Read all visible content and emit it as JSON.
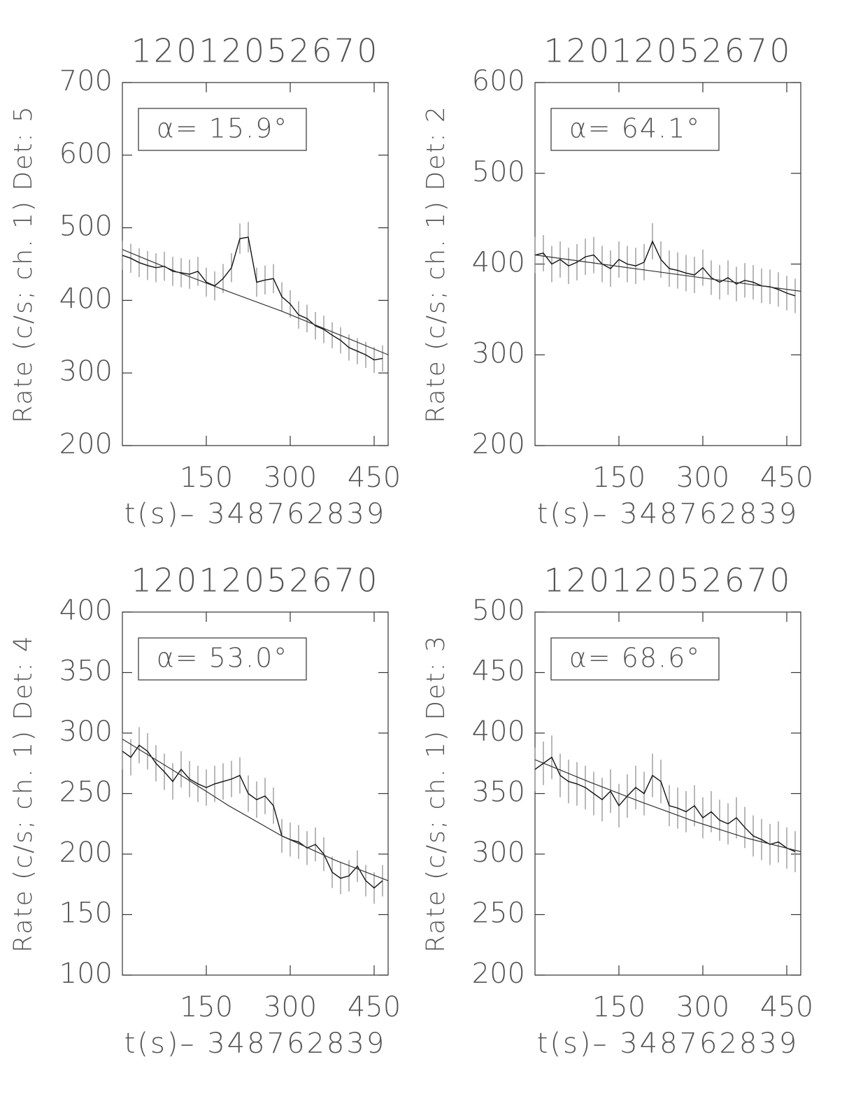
{
  "chart_data": [
    {
      "type": "line",
      "title": "12012052670",
      "ylabel": "Rate (c/s; ch. 1) Det: 5",
      "xlabel": "t(s)– 348762839",
      "annotation": "α= 15.9°",
      "xlim": [
        0,
        475
      ],
      "xticks": [
        150,
        300,
        450
      ],
      "ylim": [
        200,
        700
      ],
      "yticks": [
        200,
        300,
        400,
        500,
        600,
        700
      ],
      "x": [
        0,
        15,
        30,
        45,
        60,
        75,
        90,
        105,
        120,
        135,
        150,
        165,
        180,
        195,
        210,
        225,
        240,
        255,
        270,
        285,
        300,
        315,
        330,
        345,
        360,
        375,
        390,
        405,
        420,
        435,
        450,
        465
      ],
      "series": [
        {
          "color": "#111111",
          "values": [
            462,
            458,
            452,
            448,
            445,
            447,
            440,
            438,
            436,
            440,
            425,
            420,
            430,
            445,
            485,
            487,
            425,
            428,
            430,
            405,
            395,
            380,
            375,
            365,
            360,
            352,
            345,
            335,
            330,
            325,
            318,
            320
          ],
          "errors": [
            20,
            20,
            20,
            20,
            20,
            20,
            20,
            20,
            20,
            20,
            20,
            20,
            20,
            20,
            21,
            21,
            20,
            20,
            20,
            20,
            19,
            19,
            19,
            19,
            19,
            18,
            18,
            18,
            18,
            18,
            18,
            18
          ]
        },
        {
          "color": "#333333",
          "x": [
            0,
            95,
            190,
            285,
            380,
            475
          ],
          "values": [
            470,
            440,
            412,
            385,
            355,
            325
          ]
        }
      ]
    },
    {
      "type": "line",
      "title": "12012052670",
      "ylabel": "Rate (c/s; ch. 1) Det: 2",
      "xlabel": "t(s)– 348762839",
      "annotation": "α= 64.1°",
      "xlim": [
        0,
        475
      ],
      "xticks": [
        150,
        300,
        450
      ],
      "ylim": [
        200,
        600
      ],
      "yticks": [
        200,
        300,
        400,
        500,
        600
      ],
      "x": [
        0,
        15,
        30,
        45,
        60,
        75,
        90,
        105,
        120,
        135,
        150,
        165,
        180,
        195,
        210,
        225,
        240,
        255,
        270,
        285,
        300,
        315,
        330,
        345,
        360,
        375,
        390,
        405,
        420,
        435,
        450,
        465
      ],
      "series": [
        {
          "color": "#111111",
          "values": [
            410,
            412,
            400,
            405,
            398,
            402,
            408,
            410,
            400,
            395,
            405,
            400,
            398,
            402,
            425,
            405,
            395,
            393,
            390,
            388,
            396,
            385,
            380,
            385,
            378,
            382,
            380,
            376,
            375,
            372,
            368,
            365
          ],
          "errors": [
            20,
            20,
            20,
            20,
            20,
            20,
            20,
            20,
            20,
            20,
            20,
            20,
            20,
            20,
            20,
            20,
            20,
            20,
            20,
            20,
            20,
            19,
            19,
            19,
            19,
            19,
            19,
            19,
            19,
            19,
            19,
            19
          ]
        },
        {
          "color": "#333333",
          "x": [
            0,
            95,
            190,
            285,
            380,
            475
          ],
          "values": [
            410,
            402,
            394,
            386,
            378,
            370
          ]
        }
      ]
    },
    {
      "type": "line",
      "title": "12012052670",
      "ylabel": "Rate (c/s; ch. 1) Det: 4",
      "xlabel": "t(s)– 348762839",
      "annotation": "α= 53.0°",
      "xlim": [
        0,
        475
      ],
      "xticks": [
        150,
        300,
        450
      ],
      "ylim": [
        100,
        400
      ],
      "yticks": [
        100,
        150,
        200,
        250,
        300,
        350,
        400
      ],
      "x": [
        0,
        15,
        30,
        45,
        60,
        75,
        90,
        105,
        120,
        135,
        150,
        165,
        180,
        195,
        210,
        225,
        240,
        255,
        270,
        285,
        300,
        315,
        330,
        345,
        360,
        375,
        390,
        405,
        420,
        435,
        450,
        465
      ],
      "series": [
        {
          "color": "#111111",
          "values": [
            285,
            280,
            290,
            285,
            275,
            268,
            260,
            270,
            262,
            258,
            255,
            258,
            260,
            262,
            265,
            250,
            245,
            248,
            240,
            215,
            212,
            210,
            205,
            208,
            200,
            185,
            180,
            182,
            190,
            178,
            172,
            178
          ],
          "errors": [
            15,
            15,
            15,
            15,
            15,
            15,
            15,
            15,
            15,
            15,
            15,
            15,
            15,
            15,
            15,
            15,
            15,
            15,
            15,
            14,
            14,
            14,
            14,
            14,
            14,
            13,
            13,
            13,
            13,
            13,
            13,
            13
          ]
        },
        {
          "color": "#333333",
          "x": [
            0,
            95,
            190,
            285,
            380,
            475
          ],
          "values": [
            295,
            268,
            240,
            215,
            195,
            178
          ]
        }
      ]
    },
    {
      "type": "line",
      "title": "12012052670",
      "ylabel": "Rate (c/s; ch. 1) Det: 3",
      "xlabel": "t(s)– 348762839",
      "annotation": "α= 68.6°",
      "xlim": [
        0,
        475
      ],
      "xticks": [
        150,
        300,
        450
      ],
      "ylim": [
        200,
        500
      ],
      "yticks": [
        200,
        250,
        300,
        350,
        400,
        450,
        500
      ],
      "x": [
        0,
        15,
        30,
        45,
        60,
        75,
        90,
        105,
        120,
        135,
        150,
        165,
        180,
        195,
        210,
        225,
        240,
        255,
        270,
        285,
        300,
        315,
        330,
        345,
        360,
        375,
        390,
        405,
        420,
        435,
        450,
        465
      ],
      "series": [
        {
          "color": "#111111",
          "values": [
            370,
            375,
            380,
            365,
            360,
            358,
            355,
            350,
            345,
            352,
            340,
            348,
            355,
            350,
            365,
            360,
            340,
            338,
            335,
            340,
            330,
            335,
            328,
            325,
            330,
            322,
            315,
            312,
            308,
            310,
            305,
            302
          ],
          "errors": [
            18,
            18,
            18,
            18,
            18,
            18,
            18,
            18,
            18,
            18,
            18,
            18,
            18,
            18,
            18,
            18,
            17,
            17,
            17,
            17,
            17,
            17,
            17,
            17,
            17,
            17,
            17,
            17,
            17,
            17,
            17,
            17
          ]
        },
        {
          "color": "#333333",
          "x": [
            0,
            95,
            190,
            285,
            380,
            475
          ],
          "values": [
            378,
            360,
            343,
            327,
            313,
            302
          ]
        }
      ]
    }
  ]
}
